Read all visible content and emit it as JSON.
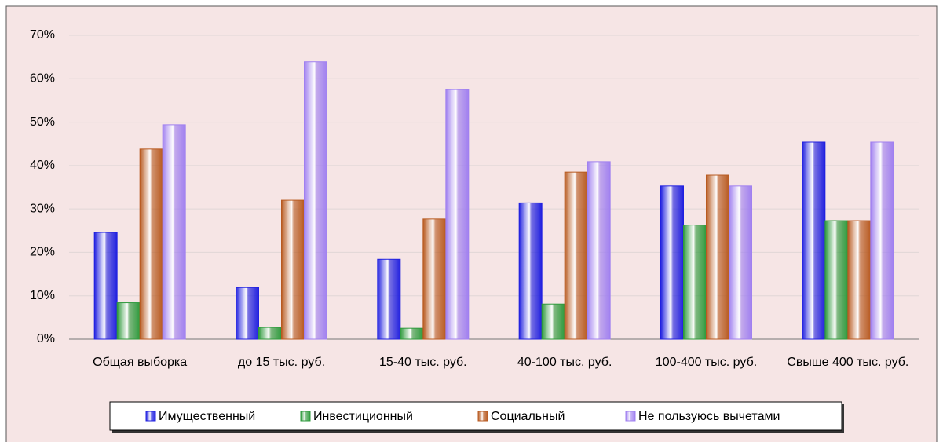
{
  "chart_data": {
    "type": "bar",
    "categories": [
      "Общая выборка",
      "до 15 тыс. руб.",
      "15-40 тыс. руб.",
      "40-100 тыс. руб.",
      "100-400 тыс. руб.",
      "Свыше 400 тыс. руб."
    ],
    "series": [
      {
        "name": "Имущественный",
        "color": "#2020e0",
        "values": [
          24.6,
          11.9,
          18.4,
          31.4,
          35.3,
          45.4
        ]
      },
      {
        "name": "Инвестиционный",
        "color": "#2e9a3c",
        "values": [
          8.4,
          2.7,
          2.5,
          8.1,
          26.3,
          27.3
        ]
      },
      {
        "name": "Социальный",
        "color": "#b85a20",
        "values": [
          43.8,
          32.0,
          27.7,
          38.5,
          37.8,
          27.3
        ]
      },
      {
        "name": "Не пользуюсь вычетами",
        "color": "#a080f0",
        "values": [
          49.4,
          63.9,
          57.5,
          40.9,
          35.3,
          45.4
        ]
      }
    ],
    "ylim": [
      0,
      70
    ],
    "yticks": [
      {
        "value": 0,
        "label": "0%"
      },
      {
        "value": 10,
        "label": "10%"
      },
      {
        "value": 20,
        "label": "20%"
      },
      {
        "value": 30,
        "label": "30%"
      },
      {
        "value": 40,
        "label": "40%"
      },
      {
        "value": 50,
        "label": "50%"
      },
      {
        "value": 60,
        "label": "60%"
      },
      {
        "value": 70,
        "label": "70%"
      }
    ],
    "grid": true,
    "legend": "bottom"
  }
}
